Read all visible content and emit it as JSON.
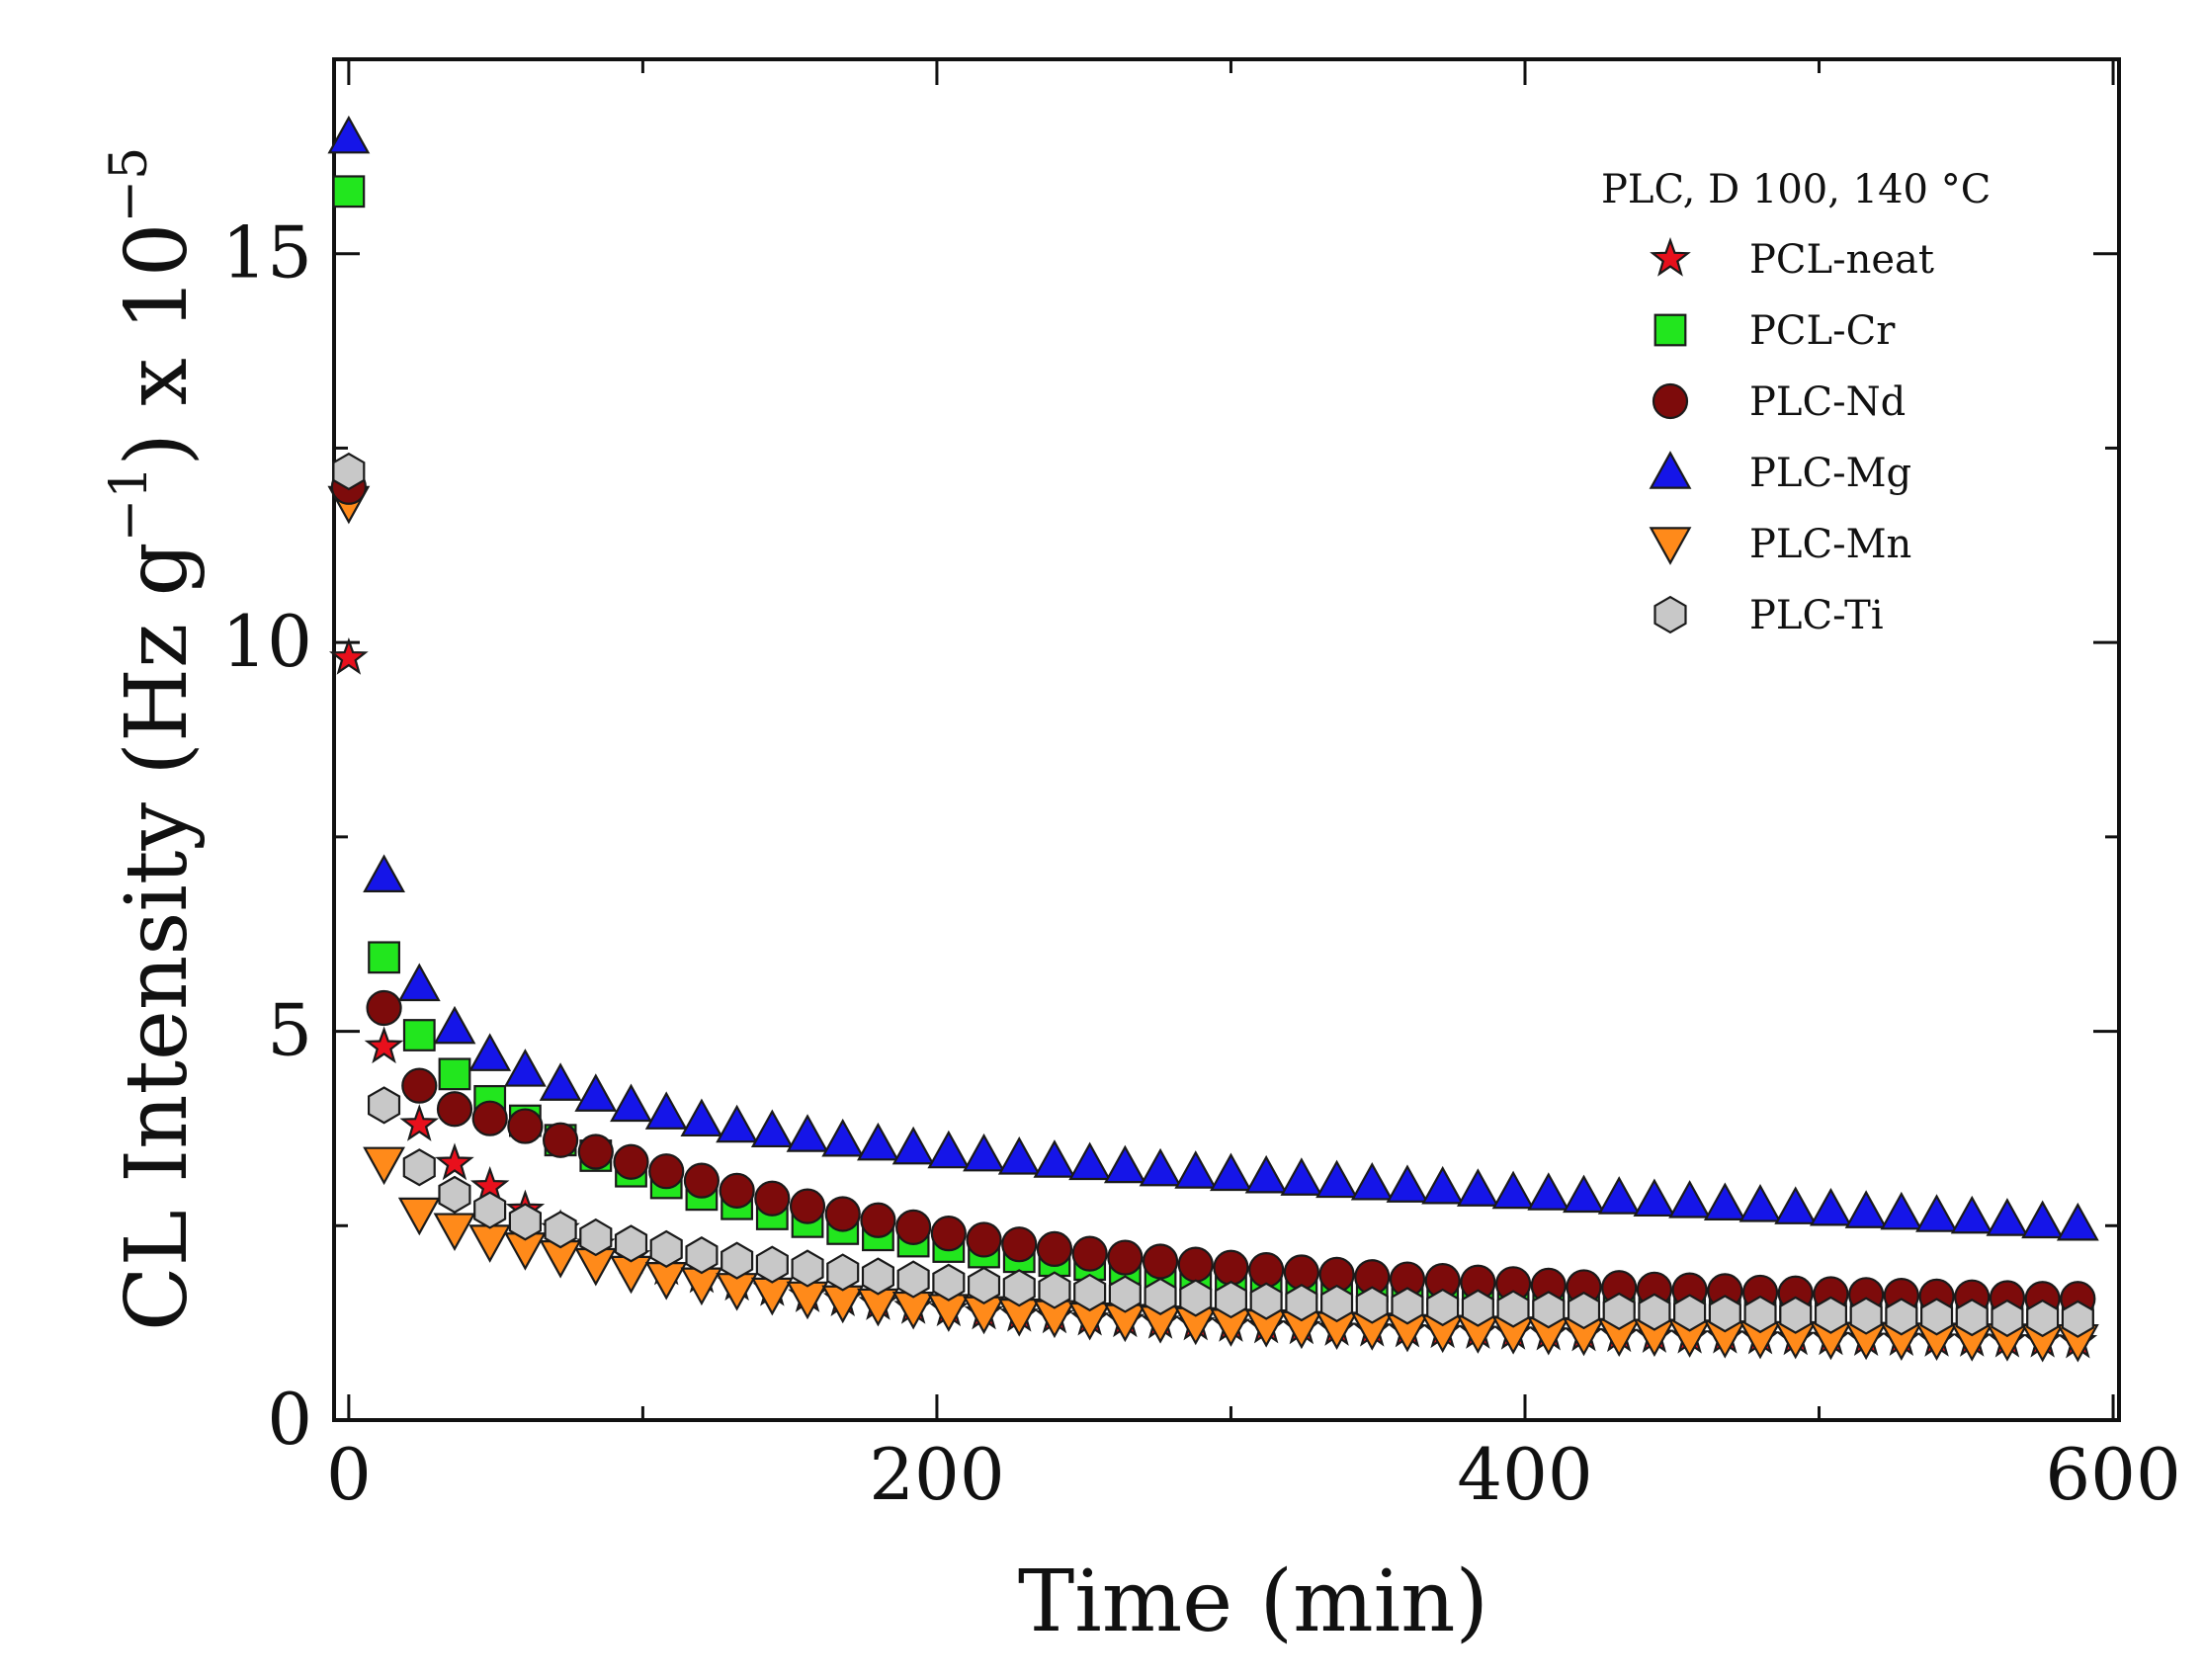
{
  "chart_data": {
    "type": "scatter",
    "x_axis": {
      "label": "Time (min)",
      "range": [
        -5,
        602
      ],
      "ticks": [
        0,
        200,
        400,
        600
      ],
      "tick_labels": [
        "0",
        "200",
        "400",
        "600"
      ]
    },
    "y_axis": {
      "label_main": "CL Intensity (Hz g",
      "label_exp1": "−1",
      "label_mid": ") x 10",
      "label_exp2": "−5",
      "range": [
        0,
        17.5
      ],
      "ticks": [
        0,
        5,
        10,
        15
      ],
      "tick_labels": [
        "0",
        "5",
        "10",
        "15"
      ]
    },
    "legend": {
      "title": "PLC, D 100, 140 °C",
      "position": "top-right"
    },
    "series": [
      {
        "name": "PCL-neat",
        "marker": "star",
        "color": "#e8101c",
        "points": [
          [
            0,
            9.8
          ],
          [
            12,
            4.8
          ],
          [
            24,
            3.8
          ],
          [
            36,
            3.3
          ],
          [
            48,
            3.0
          ],
          [
            60,
            2.7
          ],
          [
            72,
            2.45
          ],
          [
            84,
            2.25
          ],
          [
            96,
            2.1
          ],
          [
            108,
            1.95
          ],
          [
            120,
            1.85
          ],
          [
            132,
            1.75
          ],
          [
            144,
            1.68
          ],
          [
            156,
            1.6
          ],
          [
            168,
            1.55
          ],
          [
            180,
            1.5
          ],
          [
            192,
            1.45
          ],
          [
            204,
            1.42
          ],
          [
            216,
            1.38
          ],
          [
            228,
            1.35
          ],
          [
            240,
            1.33
          ],
          [
            252,
            1.3
          ],
          [
            264,
            1.28
          ],
          [
            276,
            1.26
          ],
          [
            288,
            1.24
          ],
          [
            300,
            1.22
          ],
          [
            312,
            1.2
          ],
          [
            324,
            1.19
          ],
          [
            336,
            1.17
          ],
          [
            348,
            1.16
          ],
          [
            360,
            1.15
          ],
          [
            372,
            1.14
          ],
          [
            384,
            1.13
          ],
          [
            396,
            1.12
          ],
          [
            408,
            1.11
          ],
          [
            420,
            1.1
          ],
          [
            432,
            1.09
          ],
          [
            444,
            1.08
          ],
          [
            456,
            1.07
          ],
          [
            468,
            1.07
          ],
          [
            480,
            1.06
          ],
          [
            492,
            1.05
          ],
          [
            504,
            1.05
          ],
          [
            516,
            1.04
          ],
          [
            528,
            1.04
          ],
          [
            540,
            1.03
          ],
          [
            552,
            1.03
          ],
          [
            564,
            1.02
          ],
          [
            576,
            1.02
          ],
          [
            588,
            1.01
          ]
        ]
      },
      {
        "name": "PCL-Cr",
        "marker": "square",
        "color": "#22e61e",
        "points": [
          [
            0,
            15.8
          ],
          [
            12,
            5.95
          ],
          [
            24,
            4.95
          ],
          [
            36,
            4.45
          ],
          [
            48,
            4.1
          ],
          [
            60,
            3.85
          ],
          [
            72,
            3.6
          ],
          [
            84,
            3.4
          ],
          [
            96,
            3.2
          ],
          [
            108,
            3.05
          ],
          [
            120,
            2.9
          ],
          [
            132,
            2.78
          ],
          [
            144,
            2.65
          ],
          [
            156,
            2.55
          ],
          [
            168,
            2.46
          ],
          [
            180,
            2.38
          ],
          [
            192,
            2.3
          ],
          [
            204,
            2.23
          ],
          [
            216,
            2.16
          ],
          [
            228,
            2.1
          ],
          [
            240,
            2.05
          ],
          [
            252,
            2.0
          ],
          [
            264,
            1.95
          ],
          [
            276,
            1.91
          ],
          [
            288,
            1.87
          ],
          [
            300,
            1.83
          ],
          [
            312,
            1.8
          ],
          [
            324,
            1.77
          ],
          [
            336,
            1.74
          ],
          [
            348,
            1.72
          ],
          [
            360,
            1.69
          ],
          [
            372,
            1.67
          ],
          [
            384,
            1.65
          ],
          [
            396,
            1.63
          ],
          [
            408,
            1.61
          ],
          [
            420,
            1.59
          ],
          [
            432,
            1.58
          ],
          [
            444,
            1.56
          ],
          [
            456,
            1.55
          ],
          [
            468,
            1.54
          ],
          [
            480,
            1.52
          ],
          [
            492,
            1.51
          ],
          [
            504,
            1.5
          ],
          [
            516,
            1.49
          ],
          [
            528,
            1.48
          ],
          [
            540,
            1.47
          ],
          [
            552,
            1.46
          ],
          [
            564,
            1.45
          ],
          [
            576,
            1.44
          ],
          [
            588,
            1.43
          ]
        ]
      },
      {
        "name": "PLC-Nd",
        "marker": "circle",
        "color": "#7d0b0b",
        "points": [
          [
            0,
            12.0
          ],
          [
            12,
            5.3
          ],
          [
            24,
            4.3
          ],
          [
            36,
            4.0
          ],
          [
            48,
            3.88
          ],
          [
            60,
            3.78
          ],
          [
            72,
            3.6
          ],
          [
            84,
            3.45
          ],
          [
            96,
            3.32
          ],
          [
            108,
            3.2
          ],
          [
            120,
            3.08
          ],
          [
            132,
            2.95
          ],
          [
            144,
            2.85
          ],
          [
            156,
            2.75
          ],
          [
            168,
            2.65
          ],
          [
            180,
            2.57
          ],
          [
            192,
            2.48
          ],
          [
            204,
            2.4
          ],
          [
            216,
            2.32
          ],
          [
            228,
            2.26
          ],
          [
            240,
            2.2
          ],
          [
            252,
            2.14
          ],
          [
            264,
            2.09
          ],
          [
            276,
            2.04
          ],
          [
            288,
            2.0
          ],
          [
            300,
            1.96
          ],
          [
            312,
            1.93
          ],
          [
            324,
            1.9
          ],
          [
            336,
            1.87
          ],
          [
            348,
            1.84
          ],
          [
            360,
            1.81
          ],
          [
            372,
            1.79
          ],
          [
            384,
            1.77
          ],
          [
            396,
            1.75
          ],
          [
            408,
            1.73
          ],
          [
            420,
            1.71
          ],
          [
            432,
            1.7
          ],
          [
            444,
            1.68
          ],
          [
            456,
            1.67
          ],
          [
            468,
            1.66
          ],
          [
            480,
            1.64
          ],
          [
            492,
            1.63
          ],
          [
            504,
            1.62
          ],
          [
            516,
            1.61
          ],
          [
            528,
            1.6
          ],
          [
            540,
            1.59
          ],
          [
            552,
            1.58
          ],
          [
            564,
            1.57
          ],
          [
            576,
            1.56
          ],
          [
            588,
            1.56
          ]
        ]
      },
      {
        "name": "PLC-Mg",
        "marker": "triangle-up",
        "color": "#1515e8",
        "points": [
          [
            0,
            16.5
          ],
          [
            12,
            7.0
          ],
          [
            24,
            5.6
          ],
          [
            36,
            5.05
          ],
          [
            48,
            4.7
          ],
          [
            60,
            4.5
          ],
          [
            72,
            4.32
          ],
          [
            84,
            4.18
          ],
          [
            96,
            4.05
          ],
          [
            108,
            3.95
          ],
          [
            120,
            3.86
          ],
          [
            132,
            3.78
          ],
          [
            144,
            3.72
          ],
          [
            156,
            3.66
          ],
          [
            168,
            3.6
          ],
          [
            180,
            3.55
          ],
          [
            192,
            3.5
          ],
          [
            204,
            3.45
          ],
          [
            216,
            3.41
          ],
          [
            228,
            3.37
          ],
          [
            240,
            3.33
          ],
          [
            252,
            3.3
          ],
          [
            264,
            3.26
          ],
          [
            276,
            3.22
          ],
          [
            288,
            3.19
          ],
          [
            300,
            3.16
          ],
          [
            312,
            3.13
          ],
          [
            324,
            3.1
          ],
          [
            336,
            3.07
          ],
          [
            348,
            3.04
          ],
          [
            360,
            3.01
          ],
          [
            372,
            2.99
          ],
          [
            384,
            2.96
          ],
          [
            396,
            2.93
          ],
          [
            408,
            2.91
          ],
          [
            420,
            2.88
          ],
          [
            432,
            2.86
          ],
          [
            444,
            2.83
          ],
          [
            456,
            2.81
          ],
          [
            468,
            2.78
          ],
          [
            480,
            2.76
          ],
          [
            492,
            2.73
          ],
          [
            504,
            2.71
          ],
          [
            516,
            2.68
          ],
          [
            528,
            2.66
          ],
          [
            540,
            2.63
          ],
          [
            552,
            2.61
          ],
          [
            564,
            2.58
          ],
          [
            576,
            2.55
          ],
          [
            588,
            2.52
          ]
        ]
      },
      {
        "name": "PLC-Mn",
        "marker": "triangle-down",
        "color": "#ff8a1a",
        "points": [
          [
            0,
            11.8
          ],
          [
            12,
            3.3
          ],
          [
            24,
            2.65
          ],
          [
            36,
            2.45
          ],
          [
            48,
            2.3
          ],
          [
            60,
            2.2
          ],
          [
            72,
            2.1
          ],
          [
            84,
            2.0
          ],
          [
            96,
            1.9
          ],
          [
            108,
            1.82
          ],
          [
            120,
            1.75
          ],
          [
            132,
            1.68
          ],
          [
            144,
            1.62
          ],
          [
            156,
            1.57
          ],
          [
            168,
            1.52
          ],
          [
            180,
            1.48
          ],
          [
            192,
            1.44
          ],
          [
            204,
            1.41
          ],
          [
            216,
            1.38
          ],
          [
            228,
            1.35
          ],
          [
            240,
            1.33
          ],
          [
            252,
            1.3
          ],
          [
            264,
            1.28
          ],
          [
            276,
            1.26
          ],
          [
            288,
            1.24
          ],
          [
            300,
            1.22
          ],
          [
            312,
            1.21
          ],
          [
            324,
            1.19
          ],
          [
            336,
            1.18
          ],
          [
            348,
            1.17
          ],
          [
            360,
            1.15
          ],
          [
            372,
            1.14
          ],
          [
            384,
            1.13
          ],
          [
            396,
            1.12
          ],
          [
            408,
            1.11
          ],
          [
            420,
            1.1
          ],
          [
            432,
            1.09
          ],
          [
            444,
            1.09
          ],
          [
            456,
            1.08
          ],
          [
            468,
            1.07
          ],
          [
            480,
            1.06
          ],
          [
            492,
            1.06
          ],
          [
            504,
            1.05
          ],
          [
            516,
            1.05
          ],
          [
            528,
            1.04
          ],
          [
            540,
            1.04
          ],
          [
            552,
            1.03
          ],
          [
            564,
            1.03
          ],
          [
            576,
            1.02
          ],
          [
            588,
            1.02
          ]
        ]
      },
      {
        "name": "PLC-Ti",
        "marker": "hexagon",
        "color": "#c8c8c8",
        "points": [
          [
            0,
            12.2
          ],
          [
            12,
            4.05
          ],
          [
            24,
            3.25
          ],
          [
            36,
            2.9
          ],
          [
            48,
            2.7
          ],
          [
            60,
            2.55
          ],
          [
            72,
            2.45
          ],
          [
            84,
            2.35
          ],
          [
            96,
            2.27
          ],
          [
            108,
            2.2
          ],
          [
            120,
            2.12
          ],
          [
            132,
            2.05
          ],
          [
            144,
            2.0
          ],
          [
            156,
            1.95
          ],
          [
            168,
            1.9
          ],
          [
            180,
            1.85
          ],
          [
            192,
            1.81
          ],
          [
            204,
            1.77
          ],
          [
            216,
            1.73
          ],
          [
            228,
            1.7
          ],
          [
            240,
            1.67
          ],
          [
            252,
            1.64
          ],
          [
            264,
            1.62
          ],
          [
            276,
            1.59
          ],
          [
            288,
            1.57
          ],
          [
            300,
            1.55
          ],
          [
            312,
            1.53
          ],
          [
            324,
            1.51
          ],
          [
            336,
            1.5
          ],
          [
            348,
            1.48
          ],
          [
            360,
            1.47
          ],
          [
            372,
            1.45
          ],
          [
            384,
            1.44
          ],
          [
            396,
            1.43
          ],
          [
            408,
            1.42
          ],
          [
            420,
            1.41
          ],
          [
            432,
            1.4
          ],
          [
            444,
            1.39
          ],
          [
            456,
            1.38
          ],
          [
            468,
            1.37
          ],
          [
            480,
            1.36
          ],
          [
            492,
            1.35
          ],
          [
            504,
            1.35
          ],
          [
            516,
            1.34
          ],
          [
            528,
            1.33
          ],
          [
            540,
            1.33
          ],
          [
            552,
            1.32
          ],
          [
            564,
            1.31
          ],
          [
            576,
            1.31
          ],
          [
            588,
            1.3
          ]
        ]
      }
    ]
  }
}
